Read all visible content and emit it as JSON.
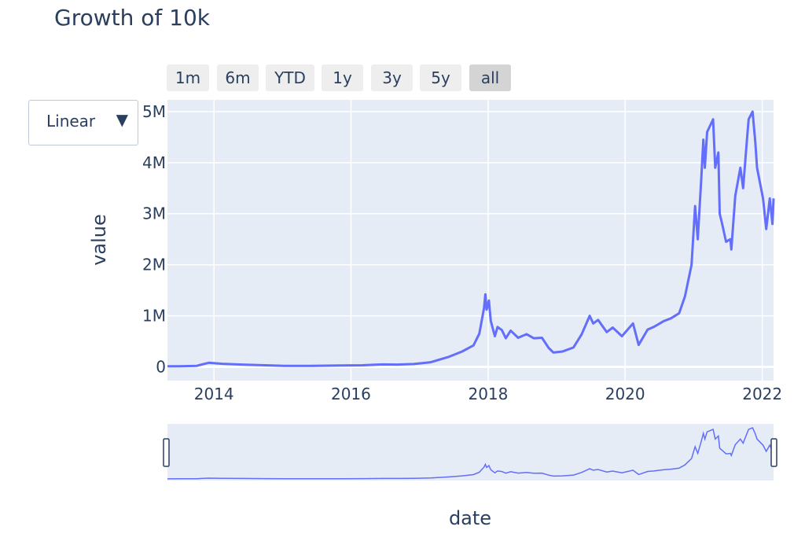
{
  "title": "Growth of 10k",
  "range_selector": {
    "buttons": [
      "1m",
      "6m",
      "YTD",
      "1y",
      "3y",
      "5y",
      "all"
    ],
    "active": "all"
  },
  "scale_dropdown": {
    "selected": "Linear",
    "arrow_icon": "triangle-down-icon"
  },
  "colors": {
    "line": "#636efa",
    "plot_bg": "#e5ecf6",
    "grid": "#ffffff",
    "text": "#2a3f5f",
    "button_bg": "#eeeeee",
    "button_active_bg": "#d4d4d4"
  },
  "chart_data": {
    "type": "line",
    "title": "Growth of 10k",
    "xlabel": "date",
    "ylabel": "value",
    "x_ticks": [
      "2014",
      "2016",
      "2018",
      "2020",
      "2022"
    ],
    "y_ticks": [
      "0",
      "1M",
      "2M",
      "3M",
      "4M",
      "5M"
    ],
    "y_tick_values": [
      0,
      1000000,
      2000000,
      3000000,
      4000000,
      5000000
    ],
    "xlim": [
      "2013-04-28",
      "2022-03-02"
    ],
    "ylim": [
      -270000,
      5230000
    ],
    "grid": true,
    "rangeslider": true,
    "series": [
      {
        "points": [
          [
            "2013-04-28",
            10000
          ],
          [
            "2013-07-01",
            12000
          ],
          [
            "2013-10-01",
            20000
          ],
          [
            "2013-12-04",
            80000
          ],
          [
            "2014-02-15",
            60000
          ],
          [
            "2014-06-01",
            45000
          ],
          [
            "2014-10-01",
            30000
          ],
          [
            "2015-01-15",
            18000
          ],
          [
            "2015-06-01",
            20000
          ],
          [
            "2015-11-01",
            26000
          ],
          [
            "2016-03-01",
            30000
          ],
          [
            "2016-06-15",
            48000
          ],
          [
            "2016-09-01",
            45000
          ],
          [
            "2016-12-01",
            55000
          ],
          [
            "2017-03-01",
            90000
          ],
          [
            "2017-06-01",
            190000
          ],
          [
            "2017-08-15",
            300000
          ],
          [
            "2017-10-15",
            420000
          ],
          [
            "2017-11-15",
            650000
          ],
          [
            "2017-12-10",
            1150000
          ],
          [
            "2017-12-17",
            1420000
          ],
          [
            "2017-12-24",
            1120000
          ],
          [
            "2018-01-05",
            1300000
          ],
          [
            "2018-01-15",
            900000
          ],
          [
            "2018-02-06",
            600000
          ],
          [
            "2018-02-20",
            780000
          ],
          [
            "2018-03-15",
            720000
          ],
          [
            "2018-04-05",
            560000
          ],
          [
            "2018-05-01",
            710000
          ],
          [
            "2018-06-10",
            570000
          ],
          [
            "2018-07-25",
            640000
          ],
          [
            "2018-09-01",
            560000
          ],
          [
            "2018-10-15",
            570000
          ],
          [
            "2018-11-20",
            370000
          ],
          [
            "2018-12-15",
            280000
          ],
          [
            "2019-02-01",
            300000
          ],
          [
            "2019-04-01",
            380000
          ],
          [
            "2019-05-15",
            640000
          ],
          [
            "2019-06-26",
            1000000
          ],
          [
            "2019-07-15",
            850000
          ],
          [
            "2019-08-10",
            920000
          ],
          [
            "2019-09-25",
            680000
          ],
          [
            "2019-10-27",
            770000
          ],
          [
            "2019-12-15",
            600000
          ],
          [
            "2020-02-12",
            850000
          ],
          [
            "2020-03-13",
            430000
          ],
          [
            "2020-04-30",
            730000
          ],
          [
            "2020-06-01",
            780000
          ],
          [
            "2020-07-27",
            900000
          ],
          [
            "2020-09-01",
            950000
          ],
          [
            "2020-10-15",
            1050000
          ],
          [
            "2020-11-15",
            1380000
          ],
          [
            "2020-12-20",
            2000000
          ],
          [
            "2021-01-08",
            3150000
          ],
          [
            "2021-01-22",
            2500000
          ],
          [
            "2021-02-10",
            3700000
          ],
          [
            "2021-02-21",
            4450000
          ],
          [
            "2021-03-01",
            3900000
          ],
          [
            "2021-03-13",
            4600000
          ],
          [
            "2021-04-14",
            4850000
          ],
          [
            "2021-04-25",
            3900000
          ],
          [
            "2021-05-12",
            4200000
          ],
          [
            "2021-05-19",
            3000000
          ],
          [
            "2021-06-01",
            2800000
          ],
          [
            "2021-06-22",
            2450000
          ],
          [
            "2021-07-15",
            2500000
          ],
          [
            "2021-07-20",
            2300000
          ],
          [
            "2021-08-10",
            3350000
          ],
          [
            "2021-09-06",
            3900000
          ],
          [
            "2021-09-21",
            3500000
          ],
          [
            "2021-10-10",
            4400000
          ],
          [
            "2021-10-20",
            4850000
          ],
          [
            "2021-11-10",
            5000000
          ],
          [
            "2021-11-25",
            4400000
          ],
          [
            "2021-12-04",
            3900000
          ],
          [
            "2021-12-20",
            3600000
          ],
          [
            "2022-01-05",
            3300000
          ],
          [
            "2022-01-22",
            2700000
          ],
          [
            "2022-02-10",
            3300000
          ],
          [
            "2022-02-24",
            2800000
          ],
          [
            "2022-03-02",
            3300000
          ]
        ]
      }
    ]
  },
  "rangeslider": {
    "handle_icons": [
      "left-handle-icon",
      "right-handle-icon"
    ]
  }
}
